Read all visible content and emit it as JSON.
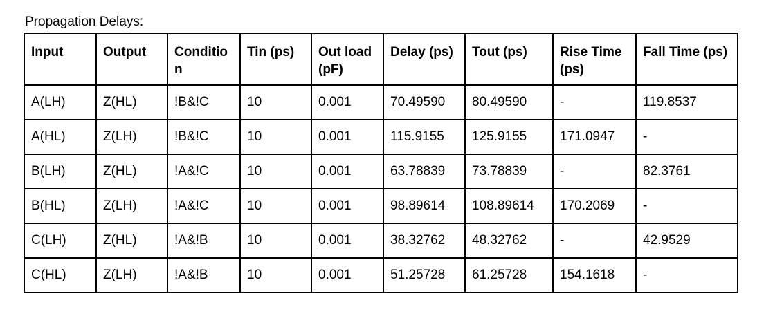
{
  "caption": "Propagation Delays:",
  "table": {
    "headers": [
      "Input",
      "Output",
      "Condition",
      "Tin (ps)",
      "Out load (pF)",
      "Delay (ps)",
      "Tout (ps)",
      "Rise Time (ps)",
      "Fall Time (ps)"
    ],
    "rows": [
      [
        "A(LH)",
        "Z(HL)",
        "!B&!C",
        "10",
        "0.001",
        "70.49590",
        "80.49590",
        "-",
        "119.8537"
      ],
      [
        "A(HL)",
        "Z(LH)",
        "!B&!C",
        "10",
        "0.001",
        "115.9155",
        "125.9155",
        "171.0947",
        "-"
      ],
      [
        "B(LH)",
        "Z(HL)",
        "!A&!C",
        "10",
        "0.001",
        "63.78839",
        "73.78839",
        "-",
        "82.3761"
      ],
      [
        "B(HL)",
        "Z(LH)",
        "!A&!C",
        "10",
        "0.001",
        "98.89614",
        "108.89614",
        "170.2069",
        "-"
      ],
      [
        "C(LH)",
        "Z(HL)",
        "!A&!B",
        "10",
        "0.001",
        "38.32762",
        "48.32762",
        "-",
        "42.9529"
      ],
      [
        "C(HL)",
        "Z(LH)",
        "!A&!B",
        "10",
        "0.001",
        "51.25728",
        "61.25728",
        "154.1618",
        "-"
      ]
    ]
  }
}
